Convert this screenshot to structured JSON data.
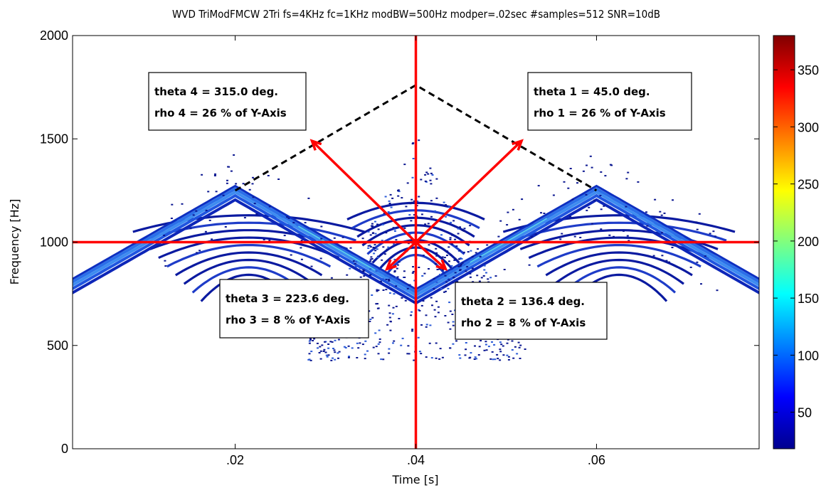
{
  "chart_data": {
    "type": "contour",
    "title": "WVD TriModFMCW 2Tri fs=4KHz fc=1KHz modBW=500Hz modper=.02sec #samples=512 SNR=10dB",
    "xlabel": "Time [s]",
    "ylabel": "Frequency [Hz]",
    "xlim": [
      0.002,
      0.078
    ],
    "ylim": [
      0,
      2000
    ],
    "x_ticks": [
      {
        "value": 0.02,
        "label": ".02"
      },
      {
        "value": 0.04,
        "label": ".04"
      },
      {
        "value": 0.06,
        "label": ".06"
      }
    ],
    "y_ticks": [
      {
        "value": 0,
        "label": "0"
      },
      {
        "value": 500,
        "label": "500"
      },
      {
        "value": 1000,
        "label": "1000"
      },
      {
        "value": 1500,
        "label": "1500"
      },
      {
        "value": 2000,
        "label": "2000"
      }
    ],
    "colorbar": {
      "colormap": "jet",
      "range": [
        18,
        380
      ],
      "ticks": [
        50,
        100,
        150,
        200,
        250,
        300,
        350
      ]
    },
    "signal_ridge": {
      "x": [
        0.0,
        0.02,
        0.04,
        0.06,
        0.08
      ],
      "y": [
        750,
        1250,
        750,
        1250,
        750
      ]
    },
    "crosshair": {
      "x": 0.04,
      "y": 1000,
      "color": "#ff0000"
    },
    "dashed_lines": [
      {
        "x": [
          0.02,
          0.04,
          0.06
        ],
        "y": [
          1250,
          1760,
          1250
        ],
        "color": "#000000"
      }
    ],
    "arrows": [
      {
        "from": [
          0.04,
          1000
        ],
        "to": [
          0.0517,
          1490
        ],
        "color": "#ff0000"
      },
      {
        "from": [
          0.04,
          1000
        ],
        "to": [
          0.0285,
          1490
        ],
        "color": "#ff0000"
      },
      {
        "from": [
          0.04,
          1000
        ],
        "to": [
          0.0433,
          870
        ],
        "color": "#ff0000"
      },
      {
        "from": [
          0.04,
          1000
        ],
        "to": [
          0.0368,
          870
        ],
        "color": "#ff0000"
      }
    ],
    "annotations": [
      {
        "line1": "theta 1 = 45.0 deg.",
        "line2": "rho 1 = 26 % of Y-Axis"
      },
      {
        "line1": "theta 2 = 136.4 deg.",
        "line2": "rho 2 = 8 % of Y-Axis"
      },
      {
        "line1": "theta 3 = 223.6 deg.",
        "line2": "rho 3 = 8 % of Y-Axis"
      },
      {
        "line1": "theta 4 = 315.0 deg.",
        "line2": "rho 4 = 26 % of Y-Axis"
      }
    ]
  }
}
